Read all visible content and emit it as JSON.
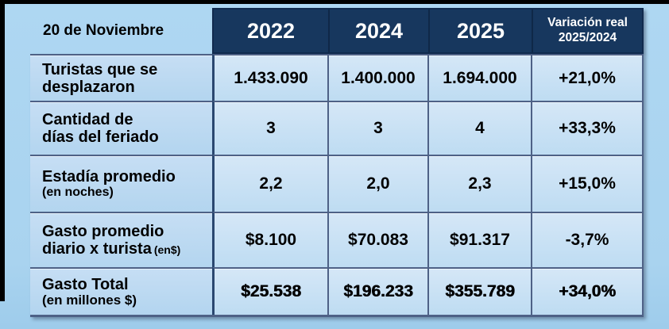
{
  "header": {
    "corner": "20 de Noviembre",
    "years": [
      "2022",
      "2024",
      "2025"
    ],
    "variation_line1": "Variación real",
    "variation_line2": "2025/2024"
  },
  "rows": [
    {
      "l1": "Turistas que se",
      "l2": "desplazaron",
      "v": [
        "1.433.090",
        "1.400.000",
        "1.694.000",
        "+21,0%"
      ]
    },
    {
      "l1": "Cantidad de",
      "l2": "días del feriado",
      "v": [
        "3",
        "3",
        "4",
        "+33,3%"
      ]
    },
    {
      "l1": "Estadía promedio",
      "note": "(en noches)",
      "v": [
        "2,2",
        "2,0",
        "2,3",
        "+15,0%"
      ]
    },
    {
      "l1": "Gasto promedio",
      "l2": "diario x turista",
      "note": "(en$)",
      "v": [
        "$8.100",
        "$70.083",
        "$91.317",
        "-3,7%"
      ]
    },
    {
      "l1": "Gasto Total",
      "note": "(en millones $)",
      "v": [
        "$25.538",
        "$196.233",
        "$355.789",
        "+34,0%"
      ]
    }
  ],
  "colors": {
    "page_bg": "#aad4f1",
    "header_bg": "#17375e",
    "header_text": "#ffffff",
    "value_cell_bg": "#cde2f5",
    "label_cell_bg": "#bcd9f1",
    "border": "#4e6186",
    "text": "#000000"
  },
  "chart_data": {
    "type": "table",
    "title": "20 de Noviembre",
    "columns": [
      "",
      "2022",
      "2024",
      "2025",
      "Variación real 2025/2024"
    ],
    "rows": [
      [
        "Turistas que se desplazaron",
        "1.433.090",
        "1.400.000",
        "1.694.000",
        "+21,0%"
      ],
      [
        "Cantidad de días del feriado",
        "3",
        "3",
        "4",
        "+33,3%"
      ],
      [
        "Estadía promedio (en noches)",
        "2,2",
        "2,0",
        "2,3",
        "+15,0%"
      ],
      [
        "Gasto promedio diario x turista (en$)",
        "$8.100",
        "$70.083",
        "$91.317",
        "-3,7%"
      ],
      [
        "Gasto Total (en millones $)",
        "$25.538",
        "$196.233",
        "$355.789",
        "+34,0%"
      ]
    ]
  }
}
